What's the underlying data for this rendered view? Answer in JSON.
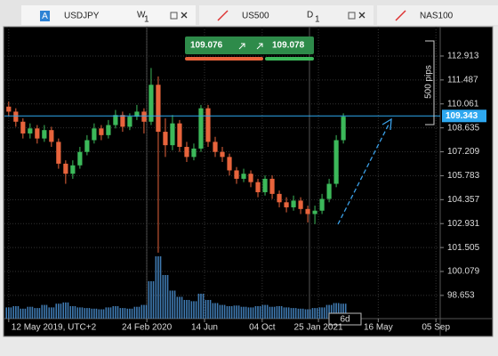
{
  "tabs": [
    {
      "badge": "A",
      "symbol": "USDJPY",
      "timeframe": "W",
      "timeframe_sub": "1"
    },
    {
      "symbol": "US500",
      "timeframe": "D",
      "timeframe_sub": "1"
    },
    {
      "symbol": "NAS100"
    }
  ],
  "trade": {
    "sell": "109.076",
    "buy": "109.078"
  },
  "chart_data": {
    "type": "candlestick",
    "up_color": "#3cb95a",
    "down_color": "#e8643c",
    "ylim": [
      97.27,
      114.66
    ],
    "yticks": [
      112.913,
      111.487,
      110.061,
      108.635,
      107.209,
      105.783,
      104.357,
      102.931,
      101.505,
      100.079,
      98.653
    ],
    "xlim": [
      -0.6,
      60.6
    ],
    "xticks": [
      {
        "value": 0,
        "label": "12 May 2019, UTC+2"
      },
      {
        "value": 19.4,
        "label": "24 Feb 2020"
      },
      {
        "value": 27.5,
        "label": "14 Jun"
      },
      {
        "value": 35.6,
        "label": "04 Oct"
      },
      {
        "value": 43.5,
        "label": "25 Jan 2021"
      },
      {
        "value": 51.9,
        "label": "16 May"
      },
      {
        "value": 60,
        "label": "05 Sep"
      }
    ],
    "current_price": 109.343,
    "range_label": "500 pips",
    "bar_period_label": "6d",
    "candles": [
      [
        109.9,
        110.2,
        109.3,
        109.6
      ],
      [
        109.6,
        109.8,
        108.7,
        109.0
      ],
      [
        109.0,
        109.2,
        108.0,
        108.3
      ],
      [
        108.3,
        108.9,
        108.0,
        108.6
      ],
      [
        108.6,
        108.8,
        107.7,
        108.0
      ],
      [
        108.0,
        108.8,
        107.8,
        108.5
      ],
      [
        108.5,
        108.7,
        107.5,
        107.8
      ],
      [
        107.8,
        108.0,
        106.2,
        106.5
      ],
      [
        106.5,
        106.7,
        105.3,
        105.9
      ],
      [
        105.9,
        106.7,
        105.6,
        106.4
      ],
      [
        106.4,
        107.5,
        106.2,
        107.2
      ],
      [
        107.2,
        108.2,
        107.0,
        107.9
      ],
      [
        107.9,
        108.9,
        107.7,
        108.6
      ],
      [
        108.6,
        108.8,
        107.9,
        108.2
      ],
      [
        108.2,
        109.1,
        108.0,
        108.8
      ],
      [
        108.8,
        109.7,
        108.6,
        109.4
      ],
      [
        109.4,
        109.6,
        108.4,
        108.7
      ],
      [
        108.7,
        109.5,
        108.5,
        109.3
      ],
      [
        109.3,
        110.0,
        109.1,
        109.6
      ],
      [
        109.6,
        109.8,
        108.3,
        109.0
      ],
      [
        109.0,
        112.2,
        108.8,
        111.2
      ],
      [
        111.2,
        111.7,
        101.2,
        108.4
      ],
      [
        108.4,
        109.2,
        106.9,
        107.6
      ],
      [
        107.6,
        109.4,
        107.3,
        108.9
      ],
      [
        108.9,
        109.1,
        107.2,
        107.5
      ],
      [
        107.5,
        107.8,
        106.6,
        106.9
      ],
      [
        106.9,
        107.7,
        106.7,
        107.4
      ],
      [
        107.4,
        110.0,
        107.2,
        109.8
      ],
      [
        109.8,
        110.0,
        107.5,
        107.8
      ],
      [
        107.8,
        108.1,
        106.9,
        107.2
      ],
      [
        107.2,
        107.5,
        106.6,
        106.9
      ],
      [
        106.9,
        107.1,
        105.8,
        106.1
      ],
      [
        106.1,
        106.3,
        105.3,
        105.6
      ],
      [
        105.6,
        106.2,
        105.4,
        105.9
      ],
      [
        105.9,
        106.1,
        105.1,
        105.4
      ],
      [
        105.4,
        105.6,
        104.5,
        104.8
      ],
      [
        104.8,
        105.8,
        104.6,
        105.6
      ],
      [
        105.6,
        105.8,
        104.4,
        104.7
      ],
      [
        104.7,
        104.9,
        103.9,
        104.2
      ],
      [
        104.2,
        104.5,
        103.6,
        103.9
      ],
      [
        103.9,
        104.6,
        103.7,
        104.3
      ],
      [
        104.3,
        104.5,
        103.5,
        103.8
      ],
      [
        103.8,
        104.0,
        103.0,
        103.5
      ],
      [
        103.5,
        104.0,
        102.9,
        103.7
      ],
      [
        103.7,
        104.7,
        103.5,
        104.4
      ],
      [
        104.4,
        105.6,
        104.2,
        105.3
      ],
      [
        105.3,
        108.2,
        105.1,
        107.9
      ],
      [
        107.9,
        109.5,
        107.7,
        109.3
      ]
    ],
    "volume_lim": [
      0,
      100
    ],
    "volume_color": "#4a8fd0",
    "volumes": [
      18,
      20,
      16,
      19,
      17,
      22,
      18,
      24,
      26,
      20,
      18,
      17,
      16,
      15,
      18,
      20,
      17,
      16,
      19,
      22,
      60,
      100,
      70,
      45,
      35,
      30,
      28,
      40,
      30,
      25,
      22,
      20,
      21,
      19,
      18,
      20,
      22,
      19,
      20,
      18,
      17,
      16,
      15,
      17,
      18,
      22,
      25,
      24
    ]
  }
}
